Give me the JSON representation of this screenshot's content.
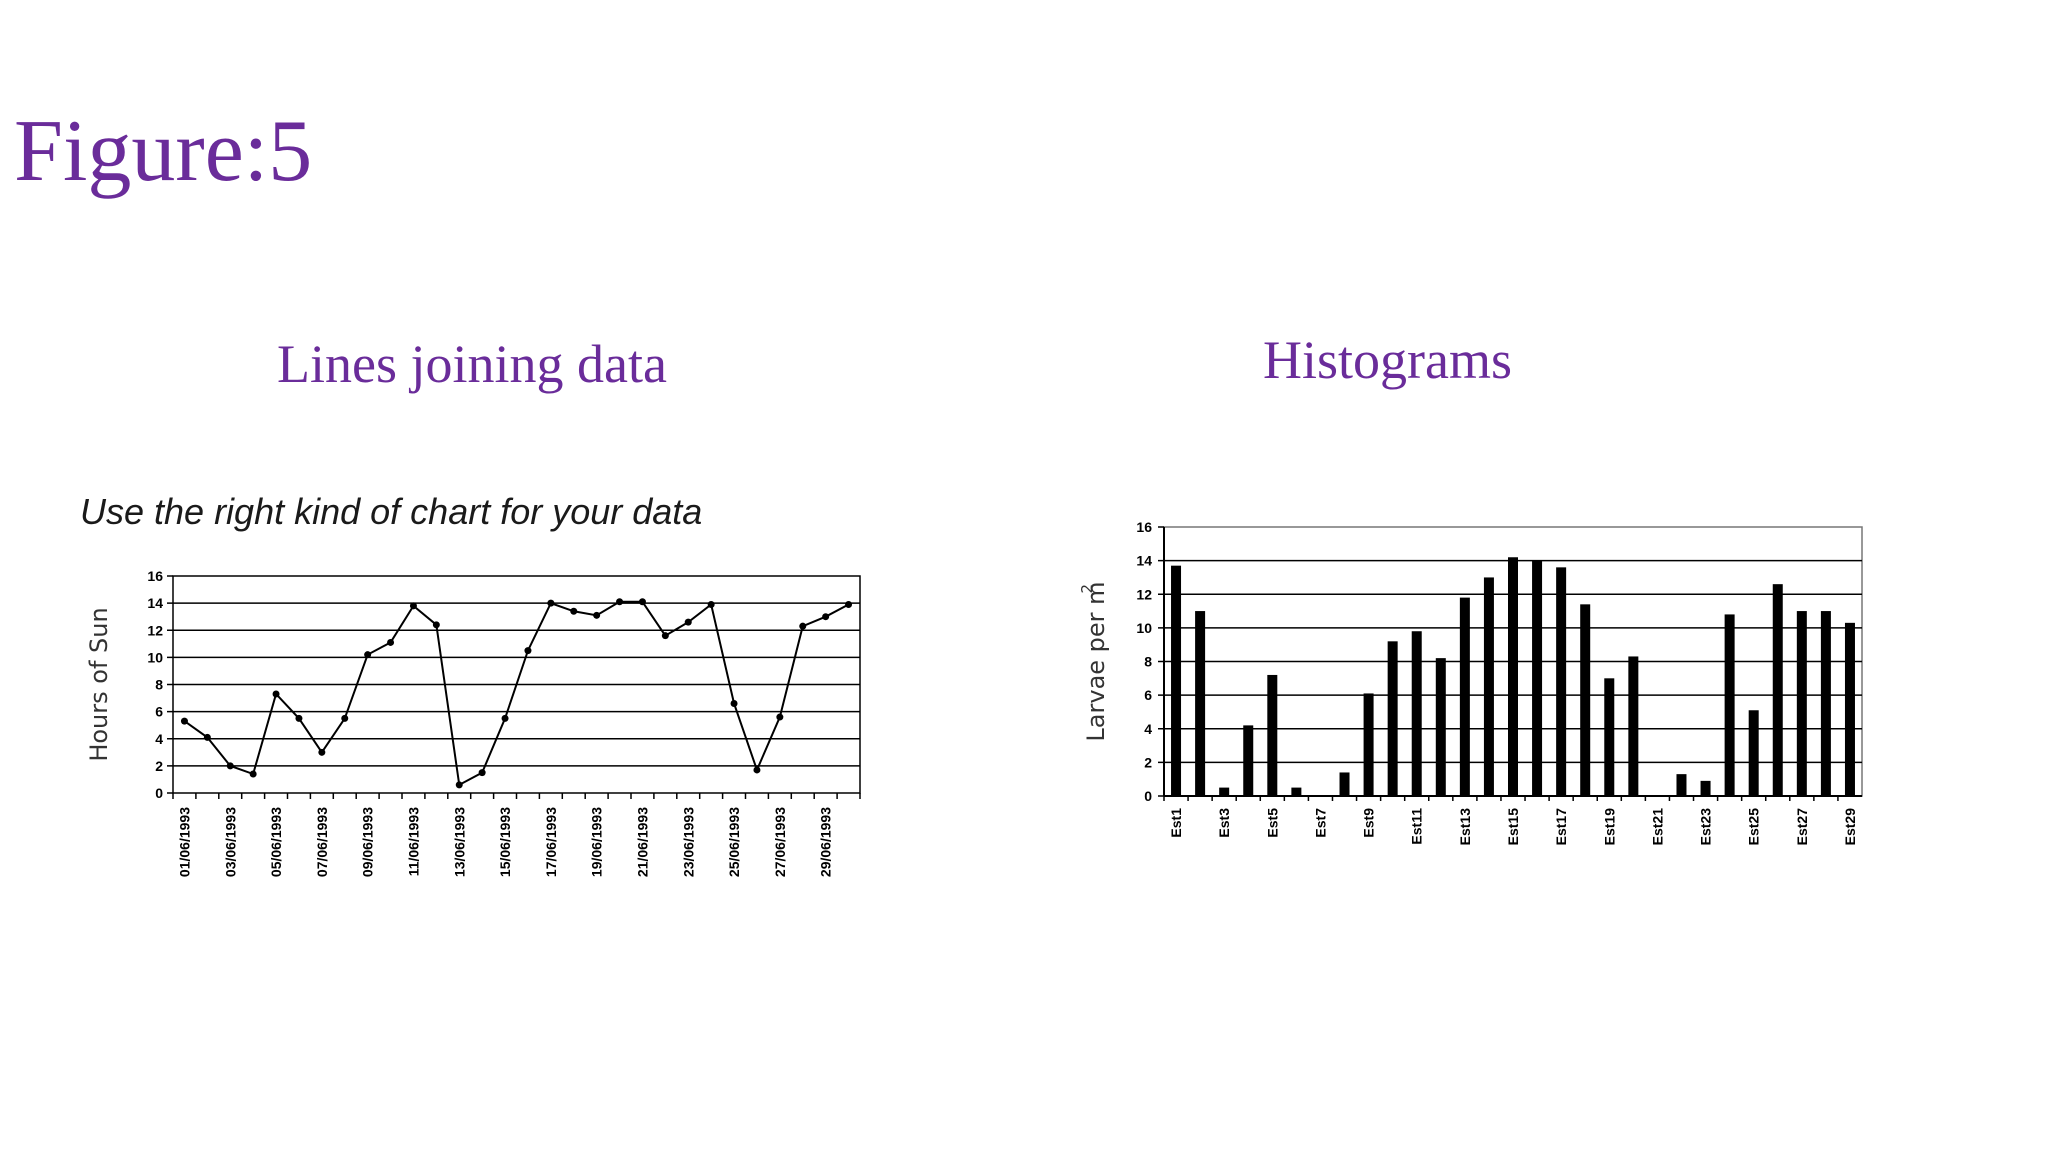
{
  "slide": {
    "title": "Figure:5",
    "line_subtitle": "Lines joining data",
    "hist_subtitle": "Histograms"
  },
  "colors": {
    "title": "#6a2c9a",
    "ink": "#000000"
  },
  "chart_data": [
    {
      "type": "line",
      "title": "Use the right kind of chart for your data",
      "xlabel": "",
      "ylabel": "Hours of Sun",
      "ylim": [
        0,
        16
      ],
      "yticks": [
        0,
        2,
        4,
        6,
        8,
        10,
        12,
        14,
        16
      ],
      "grid": true,
      "category_labels": [
        "01/06/1993",
        "03/06/1993",
        "05/06/1993",
        "07/06/1993",
        "09/06/1993",
        "11/06/1993",
        "13/06/1993",
        "15/06/1993",
        "17/06/1993",
        "19/06/1993",
        "21/06/1993",
        "23/06/1993",
        "25/06/1993",
        "27/06/1993",
        "29/06/1993"
      ],
      "values": [
        5.3,
        4.1,
        2.0,
        1.4,
        7.3,
        5.5,
        3.0,
        5.5,
        10.2,
        11.1,
        13.8,
        12.4,
        0.6,
        1.5,
        5.5,
        10.5,
        14.0,
        13.4,
        13.1,
        14.1,
        14.1,
        11.6,
        12.6,
        13.9,
        6.6,
        1.7,
        5.6,
        12.3,
        13.0,
        13.9
      ]
    },
    {
      "type": "bar",
      "title": "",
      "xlabel": "",
      "ylabel": "Larvae per m",
      "ylabel_superscript": "2",
      "ylim": [
        0,
        16
      ],
      "yticks": [
        0,
        2,
        4,
        6,
        8,
        10,
        12,
        14,
        16
      ],
      "grid": true,
      "category_labels": [
        "Est1",
        "Est3",
        "Est5",
        "Est7",
        "Est9",
        "Est11",
        "Est13",
        "Est15",
        "Est17",
        "Est19",
        "Est21",
        "Est23",
        "Est25",
        "Est27",
        "Est29"
      ],
      "values": [
        13.7,
        11.0,
        0.5,
        4.2,
        7.2,
        0.5,
        0,
        1.4,
        6.1,
        9.2,
        9.8,
        8.2,
        11.8,
        13.0,
        14.2,
        14.0,
        13.6,
        11.4,
        7.0,
        8.3,
        0,
        1.3,
        0.9,
        10.8,
        5.1,
        12.6,
        11.0,
        11.0,
        10.3
      ]
    }
  ]
}
